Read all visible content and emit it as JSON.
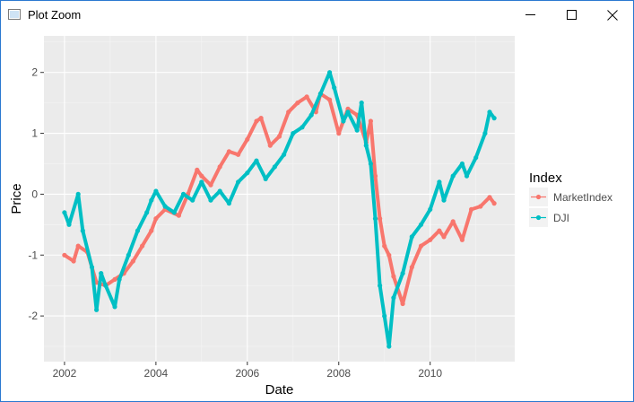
{
  "window": {
    "title": "Plot Zoom",
    "icon": "window-app-icon",
    "controls": [
      "minimize-icon",
      "maximize-icon",
      "close-icon"
    ]
  },
  "colors": {
    "panel_bg": "#ebebeb",
    "grid_major": "#ffffff",
    "market": "#f8766d",
    "dji": "#00bfc4"
  },
  "chart_data": {
    "type": "line",
    "xlabel": "Date",
    "ylabel": "Price",
    "xlim": [
      2001.55,
      2011.85
    ],
    "ylim": [
      -2.75,
      2.6
    ],
    "x_ticks": [
      2002,
      2004,
      2006,
      2008,
      2010
    ],
    "x_tick_labels": [
      "2002",
      "2004",
      "2006",
      "2008",
      "2010"
    ],
    "y_ticks": [
      -2,
      -1,
      0,
      1,
      2
    ],
    "y_tick_labels": [
      "-2",
      "-1",
      "0",
      "1",
      "2"
    ],
    "grid": true,
    "legend": {
      "title": "Index",
      "position": "right"
    },
    "series": [
      {
        "name": "MarketIndex",
        "color": "#f8766d",
        "x": [
          2002.0,
          2002.2,
          2002.3,
          2002.5,
          2002.7,
          2002.9,
          2003.1,
          2003.3,
          2003.5,
          2003.7,
          2003.9,
          2004.0,
          2004.2,
          2004.5,
          2004.7,
          2004.9,
          2005.0,
          2005.2,
          2005.4,
          2005.6,
          2005.8,
          2006.0,
          2006.2,
          2006.3,
          2006.5,
          2006.7,
          2006.9,
          2007.1,
          2007.3,
          2007.5,
          2007.6,
          2007.8,
          2008.0,
          2008.2,
          2008.4,
          2008.6,
          2008.7,
          2008.8,
          2008.9,
          2009.0,
          2009.1,
          2009.2,
          2009.4,
          2009.6,
          2009.8,
          2010.0,
          2010.2,
          2010.3,
          2010.5,
          2010.7,
          2010.9,
          2011.1,
          2011.3,
          2011.4
        ],
        "y": [
          -1.0,
          -1.1,
          -0.85,
          -0.95,
          -1.45,
          -1.5,
          -1.4,
          -1.3,
          -1.1,
          -0.85,
          -0.6,
          -0.4,
          -0.25,
          -0.35,
          0.0,
          0.4,
          0.3,
          0.15,
          0.45,
          0.7,
          0.65,
          0.9,
          1.2,
          1.25,
          0.8,
          0.95,
          1.35,
          1.5,
          1.6,
          1.35,
          1.65,
          1.55,
          1.0,
          1.4,
          1.3,
          0.85,
          1.2,
          0.3,
          -0.4,
          -0.85,
          -1.0,
          -1.35,
          -1.8,
          -1.2,
          -0.85,
          -0.75,
          -0.6,
          -0.7,
          -0.45,
          -0.75,
          -0.25,
          -0.2,
          -0.05,
          -0.15
        ]
      },
      {
        "name": "DJI",
        "color": "#00bfc4",
        "x": [
          2002.0,
          2002.1,
          2002.3,
          2002.4,
          2002.6,
          2002.7,
          2002.8,
          2002.9,
          2003.1,
          2003.2,
          2003.4,
          2003.6,
          2003.8,
          2003.9,
          2004.0,
          2004.2,
          2004.4,
          2004.6,
          2004.8,
          2005.0,
          2005.2,
          2005.4,
          2005.6,
          2005.8,
          2006.0,
          2006.2,
          2006.4,
          2006.6,
          2006.8,
          2007.0,
          2007.2,
          2007.4,
          2007.6,
          2007.8,
          2007.9,
          2008.1,
          2008.2,
          2008.4,
          2008.5,
          2008.6,
          2008.7,
          2008.8,
          2008.9,
          2009.0,
          2009.1,
          2009.2,
          2009.4,
          2009.6,
          2009.8,
          2010.0,
          2010.2,
          2010.3,
          2010.5,
          2010.7,
          2010.8,
          2011.0,
          2011.2,
          2011.3,
          2011.4
        ],
        "y": [
          -0.3,
          -0.5,
          0.0,
          -0.6,
          -1.2,
          -1.9,
          -1.3,
          -1.5,
          -1.85,
          -1.4,
          -1.0,
          -0.6,
          -0.3,
          -0.1,
          0.05,
          -0.2,
          -0.3,
          0.0,
          -0.1,
          0.2,
          -0.1,
          0.05,
          -0.15,
          0.2,
          0.35,
          0.55,
          0.25,
          0.45,
          0.65,
          1.0,
          1.1,
          1.3,
          1.65,
          2.0,
          1.75,
          1.2,
          1.35,
          1.05,
          1.5,
          0.8,
          0.5,
          -0.4,
          -1.5,
          -2.0,
          -2.5,
          -1.7,
          -1.3,
          -0.7,
          -0.5,
          -0.25,
          0.2,
          -0.1,
          0.3,
          0.5,
          0.3,
          0.6,
          1.0,
          1.35,
          1.25
        ]
      }
    ]
  }
}
